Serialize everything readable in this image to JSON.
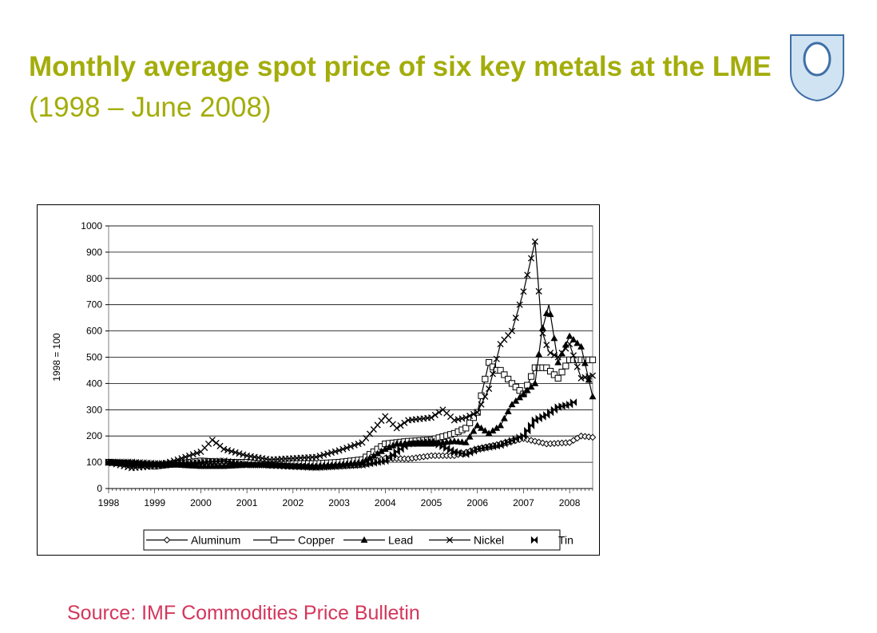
{
  "slide": {
    "title_bold": "Monthly average spot price of six key metals at the LME",
    "title_rest": " (1998 – June 2008)",
    "source": "Source: IMF Commodities Price Bulletin",
    "logo_icon": "open-university-shield-icon"
  },
  "colors": {
    "title": "#a3ad0a",
    "source": "#d4365b",
    "series": "#000000",
    "logo_fill": "#cfe3f2",
    "logo_stroke": "#3f6fa6"
  },
  "chart_data": {
    "type": "line",
    "title": "",
    "xlabel": "",
    "ylabel": "1998 = 100",
    "ylim": [
      0,
      1000
    ],
    "yticks": [
      "0",
      "100",
      "200",
      "300",
      "400",
      "500",
      "600",
      "700",
      "800",
      "900",
      "1000"
    ],
    "xlim": [
      1998,
      2008.5
    ],
    "xticks": [
      "1998",
      "1999",
      "2000",
      "2001",
      "2002",
      "2003",
      "2004",
      "2005",
      "2006",
      "2007",
      "2008"
    ],
    "grid": "horizontal",
    "legend": "bottom",
    "series": [
      {
        "name": "Aluminum",
        "marker": "diamond",
        "x": [
          1998,
          1998.5,
          1999,
          1999.5,
          2000,
          2000.5,
          2001,
          2001.5,
          2002,
          2002.5,
          2003,
          2003.5,
          2004,
          2004.5,
          2005,
          2005.5,
          2006,
          2006.5,
          2007,
          2007.5,
          2008,
          2008.25,
          2008.5
        ],
        "y": [
          100,
          92,
          87,
          95,
          105,
          97,
          100,
          88,
          84,
          83,
          87,
          92,
          115,
          113,
          125,
          125,
          150,
          170,
          190,
          170,
          175,
          200,
          195
        ]
      },
      {
        "name": "Copper",
        "marker": "square",
        "x": [
          1998,
          1998.5,
          1999,
          1999.5,
          2000,
          2000.5,
          2001,
          2001.5,
          2002,
          2002.5,
          2003,
          2003.5,
          2004,
          2004.25,
          2004.5,
          2005,
          2005.5,
          2005.75,
          2006,
          2006.25,
          2006.4,
          2006.5,
          2006.75,
          2007,
          2007.25,
          2007.5,
          2007.75,
          2008,
          2008.25,
          2008.5
        ],
        "y": [
          100,
          95,
          85,
          95,
          105,
          100,
          100,
          90,
          95,
          95,
          100,
          110,
          170,
          175,
          180,
          185,
          210,
          230,
          290,
          480,
          450,
          450,
          400,
          360,
          460,
          460,
          420,
          490,
          490,
          490
        ]
      },
      {
        "name": "Lead",
        "marker": "triangle",
        "x": [
          1998,
          1998.5,
          1999,
          1999.5,
          2000,
          2000.5,
          2001,
          2001.5,
          2002,
          2002.5,
          2003,
          2003.5,
          2004,
          2004.25,
          2004.5,
          2005,
          2005.5,
          2005.75,
          2006,
          2006.25,
          2006.5,
          2006.75,
          2007,
          2007.25,
          2007.4,
          2007.55,
          2007.75,
          2008,
          2008.25,
          2008.5
        ],
        "y": [
          100,
          95,
          90,
          90,
          85,
          85,
          90,
          90,
          85,
          85,
          90,
          100,
          150,
          170,
          170,
          170,
          180,
          175,
          240,
          210,
          240,
          320,
          360,
          400,
          600,
          700,
          480,
          580,
          540,
          350
        ]
      },
      {
        "name": "Nickel",
        "marker": "x",
        "x": [
          1998,
          1998.5,
          1999,
          1999.5,
          2000,
          2000.25,
          2000.5,
          2001,
          2001.5,
          2002,
          2002.5,
          2003,
          2003.5,
          2004,
          2004.25,
          2004.5,
          2005,
          2005.25,
          2005.5,
          2005.75,
          2006,
          2006.25,
          2006.5,
          2006.75,
          2007,
          2007.25,
          2007.4,
          2007.55,
          2007.75,
          2008,
          2008.25,
          2008.5
        ],
        "y": [
          100,
          78,
          85,
          110,
          140,
          185,
          150,
          125,
          110,
          115,
          120,
          145,
          175,
          275,
          230,
          260,
          270,
          300,
          260,
          270,
          290,
          380,
          550,
          600,
          750,
          940,
          600,
          520,
          500,
          550,
          420,
          430
        ]
      },
      {
        "name": "Tin",
        "marker": "bowtie",
        "x": [
          1998,
          1998.5,
          1999,
          1999.5,
          2000,
          2000.5,
          2001,
          2001.5,
          2002,
          2002.5,
          2003,
          2003.5,
          2004,
          2004.25,
          2004.5,
          2005,
          2005.5,
          2005.75,
          2006,
          2006.5,
          2007,
          2007.25,
          2007.5,
          2007.75,
          2008,
          2008.1
        ],
        "y": [
          100,
          100,
          95,
          95,
          100,
          105,
          90,
          90,
          85,
          80,
          85,
          90,
          105,
          140,
          170,
          180,
          140,
          130,
          150,
          165,
          200,
          260,
          280,
          310,
          320,
          330
        ]
      }
    ]
  }
}
